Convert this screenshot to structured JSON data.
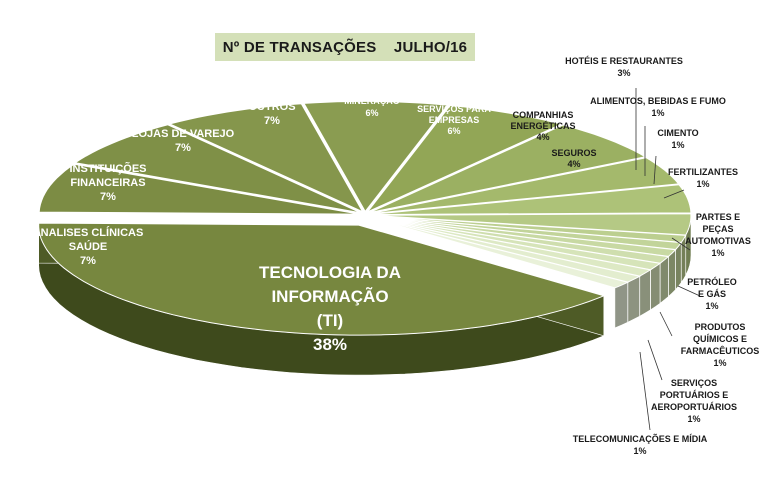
{
  "chart_data": {
    "type": "pie",
    "title": "Nº DE TRANSAÇÕES    JULHO/16",
    "slices": [
      {
        "label": "TECNOLOGIA DA\nINFORMAÇÃO\n(TI)",
        "value": 38,
        "pct": "38%",
        "color": "#77873f"
      },
      {
        "label": "HOSPITAIS E LAB. DE\nANALISES CLÍNICAS\nSAÚDE",
        "value": 7,
        "pct": "7%",
        "color": "#7c8c44"
      },
      {
        "label": "INSTITUIÇÕES\nFINANCEIRAS",
        "value": 7,
        "pct": "7%",
        "color": "#7f9047"
      },
      {
        "label": "LOJAS DE VAREJO",
        "value": 7,
        "pct": "7%",
        "color": "#85964c"
      },
      {
        "label": "OUTROS",
        "value": 7,
        "pct": "7%",
        "color": "#8a9c51"
      },
      {
        "label": "MINERAÇÃO",
        "value": 6,
        "pct": "6%",
        "color": "#92a656"
      },
      {
        "label": "SERVIÇOS PARA\nEMPRESAS",
        "value": 6,
        "pct": "6%",
        "color": "#9bb062"
      },
      {
        "label": "COMPANHIAS\nENERGÉTICAS",
        "value": 4,
        "pct": "4%",
        "color": "#a4b96c"
      },
      {
        "label": "SEGUROS",
        "value": 4,
        "pct": "4%",
        "color": "#adc278"
      },
      {
        "label": "HOTÉIS E RESTAURANTES",
        "value": 3,
        "pct": "3%",
        "color": "#b5c985"
      },
      {
        "label": "ALIMENTOS, BEBIDAS E FUMO",
        "value": 1,
        "pct": "1%",
        "color": "#bccf90"
      },
      {
        "label": "CIMENTO",
        "value": 1,
        "pct": "1%",
        "color": "#c2d49a"
      },
      {
        "label": "FERTILIZANTES",
        "value": 1,
        "pct": "1%",
        "color": "#c8d9a3"
      },
      {
        "label": "PARTES E\nPEÇAS\nAUTOMOTIVAS",
        "value": 1,
        "pct": "1%",
        "color": "#cfdeae"
      },
      {
        "label": "PETRÓLEO\nE GÁS",
        "value": 1,
        "pct": "1%",
        "color": "#d6e4b9"
      },
      {
        "label": "PRODUTOS\nQUÍMICOS E\nFARMACÊUTICOS",
        "value": 1,
        "pct": "1%",
        "color": "#dde9c4"
      },
      {
        "label": "SERVIÇOS\nPORTUÁRIOS E\nAEROPORTUÁRIOS",
        "value": 1,
        "pct": "1%",
        "color": "#e3edcf"
      },
      {
        "label": "TELECOMUNICAÇÕES E MÍDIA",
        "value": 1,
        "pct": "1%",
        "color": "#e9f1d9"
      }
    ],
    "style": "3d-exploded"
  }
}
